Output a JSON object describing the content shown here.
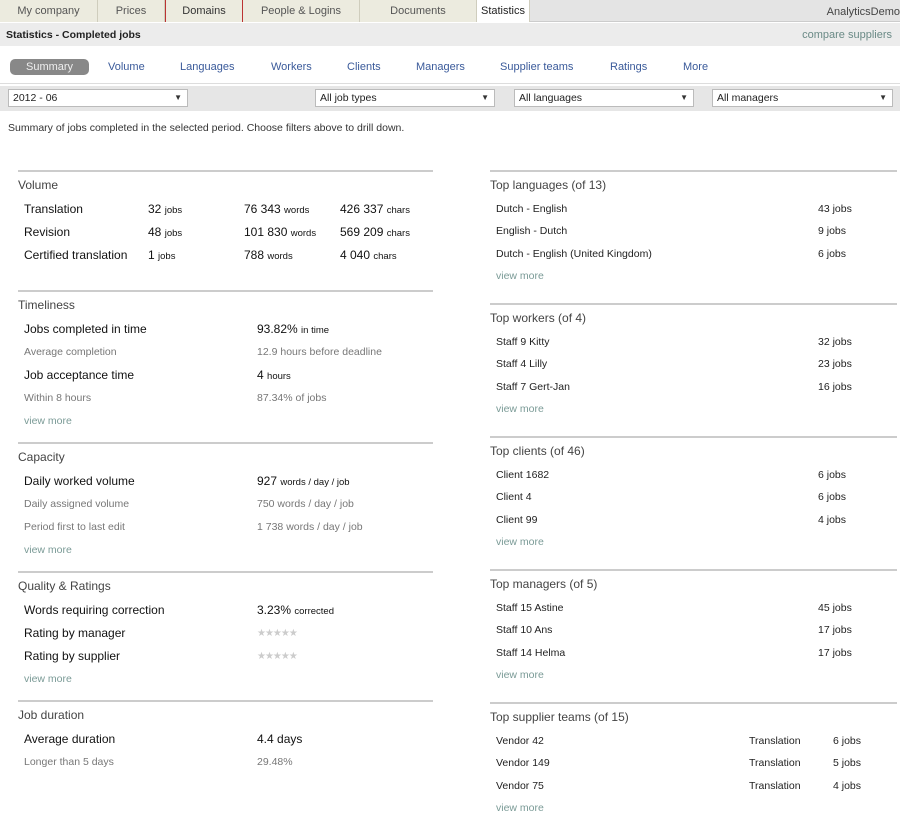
{
  "top_tabs": [
    {
      "label": "My company"
    },
    {
      "label": "Prices"
    },
    {
      "label": "Domains"
    },
    {
      "label": "People & Logins"
    },
    {
      "label": "Documents"
    },
    {
      "label": "Statistics",
      "active": true
    }
  ],
  "brand": "AnalyticsDemo",
  "title": "Statistics - Completed jobs",
  "compare_link": "compare suppliers",
  "sub_tabs": [
    "Summary",
    "Volume",
    "Languages",
    "Workers",
    "Clients",
    "Managers",
    "Supplier teams",
    "Ratings",
    "More"
  ],
  "filters": [
    "2012 - 06",
    "All job types",
    "All languages",
    "All managers"
  ],
  "intro": "Summary of jobs completed in the selected period. Choose filters above to drill down.",
  "view_more": "view more",
  "volume": {
    "title": "Volume",
    "rows": [
      {
        "label": "Translation",
        "jobs": "32",
        "jobs_unit": "jobs",
        "words": "76 343",
        "words_unit": "words",
        "chars": "426 337",
        "chars_unit": "chars"
      },
      {
        "label": "Revision",
        "jobs": "48",
        "jobs_unit": "jobs",
        "words": "101 830",
        "words_unit": "words",
        "chars": "569 209",
        "chars_unit": "chars"
      },
      {
        "label": "Certified translation",
        "jobs": "1",
        "jobs_unit": "jobs",
        "words": "788",
        "words_unit": "words",
        "chars": "4 040",
        "chars_unit": "chars"
      }
    ]
  },
  "left_sections": [
    {
      "title": "Timeliness",
      "rows": [
        {
          "kind": "main",
          "label": "Jobs completed in time",
          "value": "93.82%",
          "unit": "in time"
        },
        {
          "kind": "sub",
          "label": "Average completion",
          "value": "12.9 hours before deadline"
        },
        {
          "kind": "main",
          "label": "Job acceptance time",
          "value": "4",
          "unit": "hours"
        },
        {
          "kind": "sub",
          "label": "Within 8 hours",
          "value": "87.34% of jobs"
        }
      ],
      "more": true
    },
    {
      "title": "Capacity",
      "rows": [
        {
          "kind": "main",
          "label": "Daily worked volume",
          "value": "927",
          "unit": "words / day / job"
        },
        {
          "kind": "sub",
          "label": "Daily assigned volume",
          "value": "750 words / day / job"
        },
        {
          "kind": "sub",
          "label": "Period first to last edit",
          "value": "1 738 words / day / job"
        }
      ],
      "more": true
    },
    {
      "title": "Quality & Ratings",
      "rows": [
        {
          "kind": "main",
          "label": "Words requiring correction",
          "value": "3.23%",
          "unit": "corrected"
        },
        {
          "kind": "main",
          "label": "Rating by manager",
          "stars": 0
        },
        {
          "kind": "main",
          "label": "Rating by supplier",
          "stars": 0
        }
      ],
      "more": true
    },
    {
      "title": "Job duration",
      "rows": [
        {
          "kind": "main",
          "label": "Average duration",
          "value": "4.4 days"
        },
        {
          "kind": "sub",
          "label": "Longer than 5 days",
          "value": "29.48%"
        }
      ],
      "more": false
    }
  ],
  "right_sections": [
    {
      "title": "Top languages (of 13)",
      "rows": [
        {
          "name": "Dutch - English",
          "count": "43 jobs"
        },
        {
          "name": "English - Dutch",
          "count": "9 jobs"
        },
        {
          "name": "Dutch - English (United Kingdom)",
          "count": "6 jobs"
        }
      ]
    },
    {
      "title": "Top workers (of 4)",
      "rows": [
        {
          "name": "Staff 9 Kitty",
          "count": "32 jobs"
        },
        {
          "name": "Staff 4 Lilly",
          "count": "23 jobs"
        },
        {
          "name": "Staff 7 Gert-Jan",
          "count": "16 jobs"
        }
      ]
    },
    {
      "title": "Top clients (of 46)",
      "rows": [
        {
          "name": "Client 1682",
          "count": "6 jobs"
        },
        {
          "name": "Client 4",
          "count": "6 jobs"
        },
        {
          "name": "Client 99",
          "count": "4 jobs"
        }
      ]
    },
    {
      "title": "Top managers (of 5)",
      "rows": [
        {
          "name": "Staff 15 Astine",
          "count": "45 jobs"
        },
        {
          "name": "Staff 10 Ans",
          "count": "17 jobs"
        },
        {
          "name": "Staff 14 Helma",
          "count": "17 jobs"
        }
      ]
    },
    {
      "title": "Top supplier teams (of 15)",
      "rows": [
        {
          "name": "Vendor 42",
          "type": "Translation",
          "count": "6 jobs"
        },
        {
          "name": "Vendor 149",
          "type": "Translation",
          "count": "5 jobs"
        },
        {
          "name": "Vendor 75",
          "type": "Translation",
          "count": "4 jobs"
        }
      ]
    }
  ]
}
